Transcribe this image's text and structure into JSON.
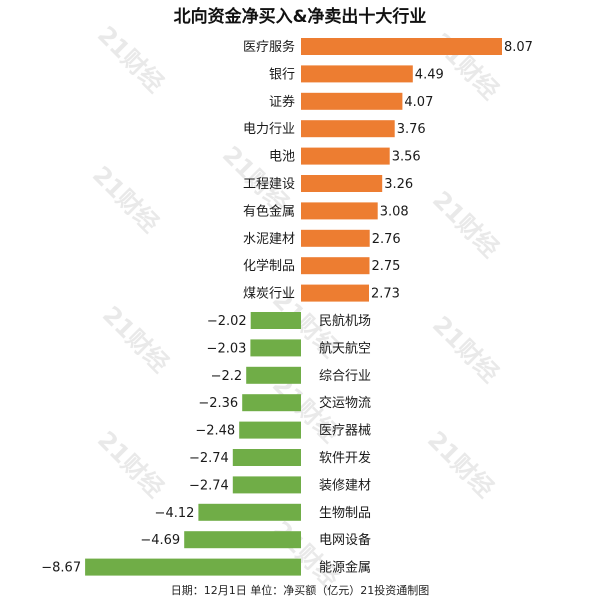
{
  "chart_data": {
    "type": "bar",
    "orientation": "horizontal",
    "title": "北向资金净买入&净卖出十大行业",
    "footer": "日期：12月1日 单位：净买额（亿元）21投资通制图",
    "watermark": "21财经",
    "colors": {
      "positive": "#ED7D31",
      "negative": "#70AD47"
    },
    "categories": [
      "医疗服务",
      "银行",
      "证券",
      "电力行业",
      "电池",
      "工程建设",
      "有色金属",
      "水泥建材",
      "化学制品",
      "煤炭行业",
      "民航机场",
      "航天航空",
      "综合行业",
      "交运物流",
      "医疗器械",
      "软件开发",
      "装修建材",
      "生物制品",
      "电网设备",
      "能源金属"
    ],
    "values": [
      8.07,
      4.49,
      4.07,
      3.76,
      3.56,
      3.26,
      3.08,
      2.76,
      2.75,
      2.73,
      -2.02,
      -2.03,
      -2.2,
      -2.36,
      -2.48,
      -2.74,
      -2.74,
      -4.12,
      -4.69,
      -8.67
    ],
    "value_labels": [
      "8.07",
      "4.49",
      "4.07",
      "3.76",
      "3.56",
      "3.26",
      "3.08",
      "2.76",
      "2.75",
      "2.73",
      "−2.02",
      "−2.03",
      "−2.2",
      "−2.36",
      "−2.48",
      "−2.74",
      "−2.74",
      "−4.12",
      "−4.69",
      "−8.67"
    ]
  }
}
